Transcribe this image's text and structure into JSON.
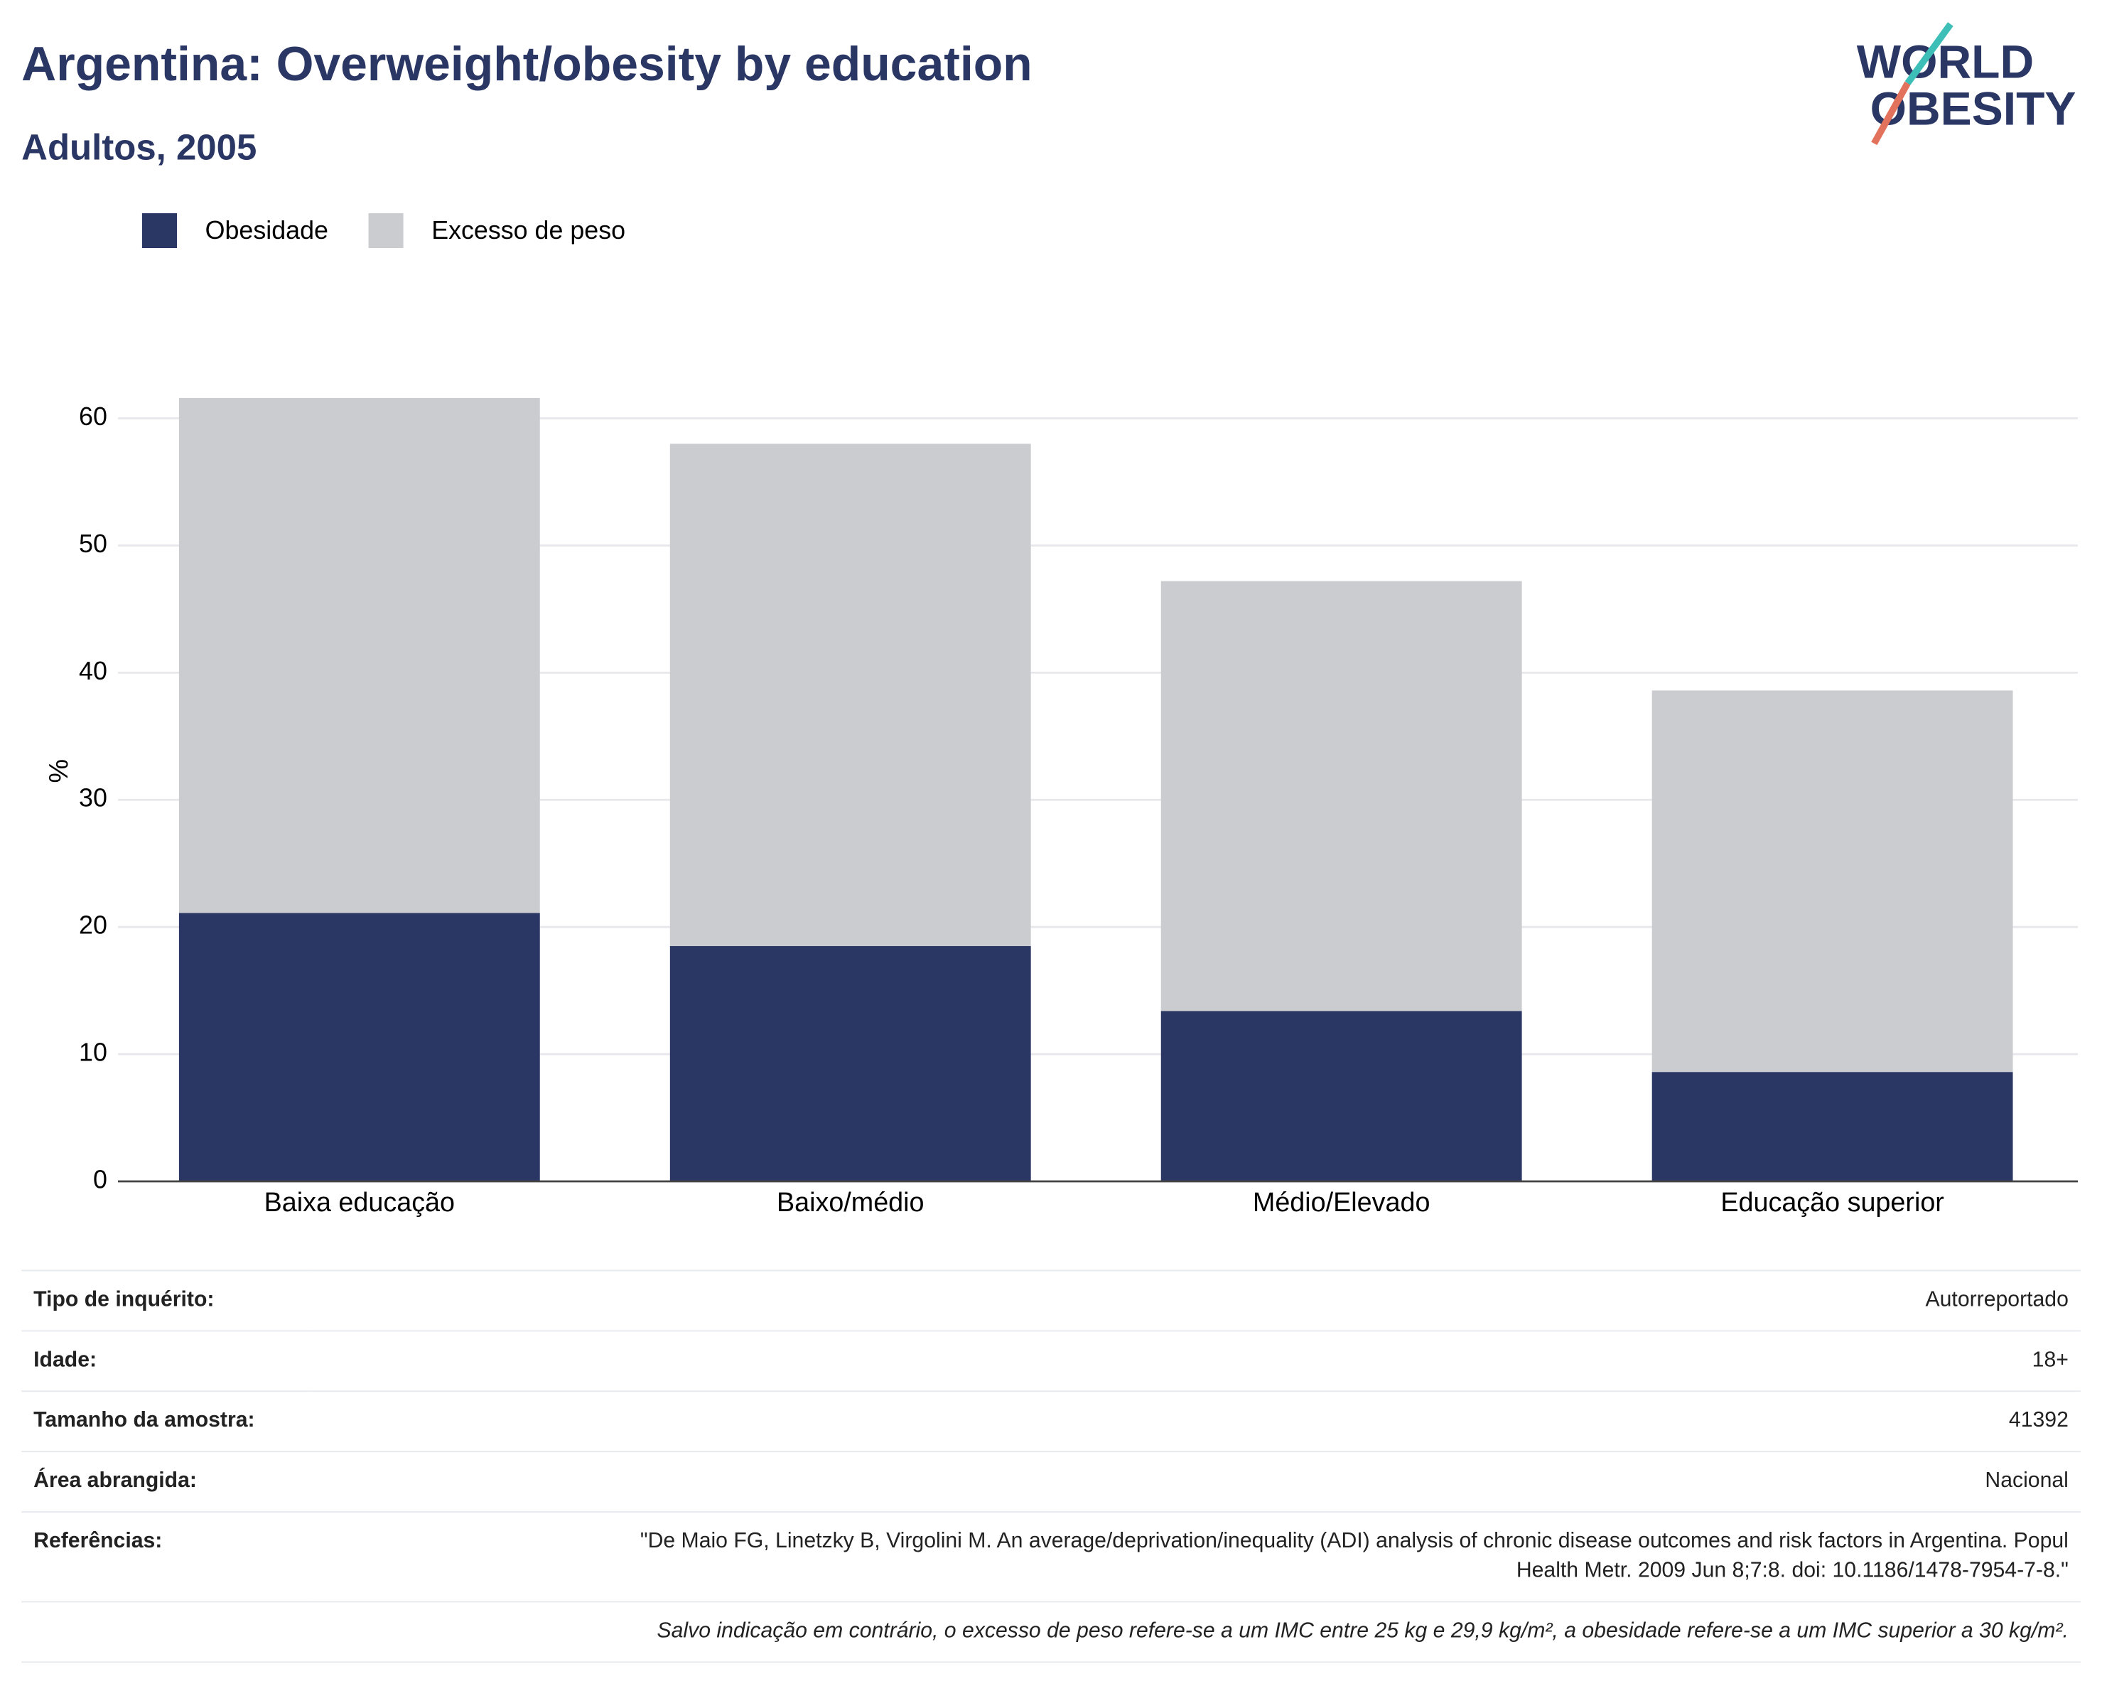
{
  "chart_data": {
    "type": "stacked_bar",
    "title": "Argentina: Overweight/obesity by education",
    "subtitle": "Adultos, 2005",
    "logo": [
      "WORLD",
      "OBESITY"
    ],
    "y_label": "%",
    "categories": [
      "Baixa educação",
      "Baixo/médio",
      "Médio/Elevado",
      "Educação superior"
    ],
    "series": [
      {
        "name": "Obesidade",
        "color": "#2a3663",
        "values": [
          21.1,
          18.5,
          13.4,
          8.6
        ]
      },
      {
        "name": "Excesso de peso",
        "color": "#cacccf",
        "values": [
          40.5,
          39.5,
          33.8,
          30.0
        ]
      }
    ],
    "ylim": [
      0,
      62
    ],
    "yticks": [
      0,
      10,
      20,
      30,
      40,
      50,
      60
    ],
    "grid": true
  },
  "table": {
    "rows": [
      [
        "Tipo de inquérito:",
        "Autorreportado"
      ],
      [
        "Idade:",
        "18+"
      ],
      [
        "Tamanho da amostra:",
        "41392"
      ],
      [
        "Área abrangida:",
        "Nacional"
      ],
      [
        "Referências:",
        "\"De Maio FG, Linetzky B, Virgolini M. An average/deprivation/inequality (ADI) analysis of chronic disease outcomes and risk factors in Argentina. Popul Health Metr. 2009 Jun 8;7:8. doi: 10.1186/1478-7954-7-8.\""
      ]
    ],
    "note": "Salvo indicação em contrário, o excesso de peso refere-se a um IMC entre 25 kg e 29,9 kg/m², a obesidade refere-se a um IMC superior a 30 kg/m²."
  }
}
